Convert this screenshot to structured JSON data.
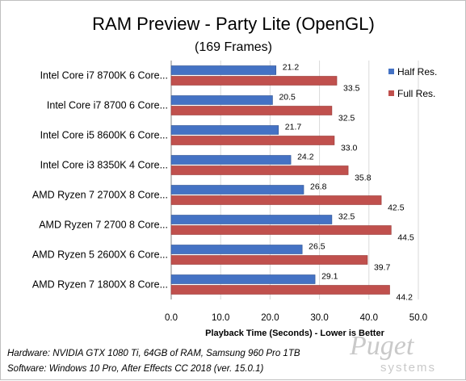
{
  "colors": {
    "half": "#4472c4",
    "full": "#c0504d",
    "grid": "#d9d9d9",
    "axis": "#7f7f7f"
  },
  "chart_data": {
    "type": "bar",
    "orientation": "horizontal",
    "title": "RAM Preview - Party Lite (OpenGL)",
    "subtitle": "(169 Frames)",
    "xlabel": "Playback  Time (Seconds)  - Lower is Better",
    "ylabel": "",
    "xlim": [
      0,
      50
    ],
    "xticks": [
      "0.0",
      "10.0",
      "20.0",
      "30.0",
      "40.0",
      "50.0"
    ],
    "grid": "vertical",
    "legend_position": "right",
    "categories": [
      "Intel Core i7 8700K 6 Core...",
      "Intel Core i7 8700 6 Core...",
      "Intel Core i5 8600K 6 Core...",
      "Intel Core i3 8350K 4 Core...",
      "AMD Ryzen 7 2700X 8 Core...",
      "AMD Ryzen 7 2700 8 Core...",
      "AMD Ryzen 5 2600X 6 Core...",
      "AMD Ryzen 7 1800X 8 Core..."
    ],
    "series": [
      {
        "name": "Half Res.",
        "values": [
          21.2,
          20.5,
          21.7,
          24.2,
          26.8,
          32.5,
          26.5,
          29.1
        ],
        "labels": [
          "21.2",
          "20.5",
          "21.7",
          "24.2",
          "26.8",
          "32.5",
          "26.5",
          "29.1"
        ]
      },
      {
        "name": "Full Res.",
        "values": [
          33.5,
          32.5,
          33.0,
          35.8,
          42.5,
          44.5,
          39.7,
          44.2
        ],
        "labels": [
          "33.5",
          "32.5",
          "33.0",
          "35.8",
          "42.5",
          "44.5",
          "39.7",
          "44.2"
        ]
      }
    ]
  },
  "footnotes": {
    "hardware": "Hardware: NVIDIA GTX 1080 Ti, 64GB of RAM, Samsung 960 Pro 1TB",
    "software": "Software: Windows 10 Pro, After Effects CC 2018 (ver. 15.0.1)"
  },
  "watermark": {
    "brand": "Puget",
    "tagline": "systems"
  }
}
